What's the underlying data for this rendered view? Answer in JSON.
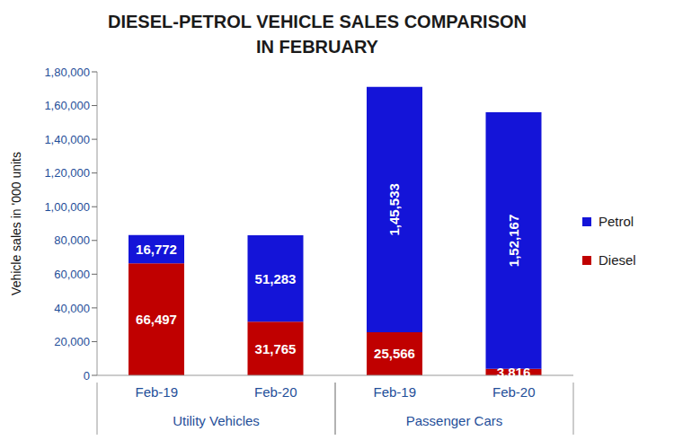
{
  "chart_data": {
    "type": "bar",
    "title": "DIESEL-PETROL VEHICLE SALES COMPARISON\nIN FEBRUARY",
    "ylabel": "Vehicle sales in '000 units",
    "categories": [
      "Feb-19",
      "Feb-20",
      "Feb-19",
      "Feb-20"
    ],
    "category_groups": [
      "Utility Vehicles",
      "Utility Vehicles",
      "Passenger Cars",
      "Passenger Cars"
    ],
    "series": [
      {
        "name": "Diesel",
        "color": "#c00000",
        "values": [
          66497,
          31765,
          25566,
          3816
        ],
        "value_labels": [
          "66,497",
          "31,765",
          "25,566",
          "3,816"
        ]
      },
      {
        "name": "Petrol",
        "color": "#1414d8",
        "values": [
          16772,
          51283,
          145533,
          152167
        ],
        "value_labels": [
          "16,772",
          "51,283",
          "1,45,533",
          "1,52,167"
        ]
      }
    ],
    "stacked": true,
    "data_labels": true,
    "legend": "right",
    "grid": false,
    "ylim": [
      0,
      180000
    ],
    "yticks": [
      0,
      {
        "value": 20000,
        "label": "20,000"
      },
      {
        "value": 40000,
        "label": "40,000"
      },
      {
        "value": 60000,
        "label": "60,000"
      },
      {
        "value": 80000,
        "label": "80,000"
      },
      {
        "value": 100000,
        "label": "1,00,000"
      },
      {
        "value": 120000,
        "label": "1,20,000"
      },
      {
        "value": 140000,
        "label": "1,40,000"
      },
      {
        "value": 160000,
        "label": "1,60,000"
      },
      {
        "value": 180000,
        "label": "1,80,000"
      }
    ]
  }
}
